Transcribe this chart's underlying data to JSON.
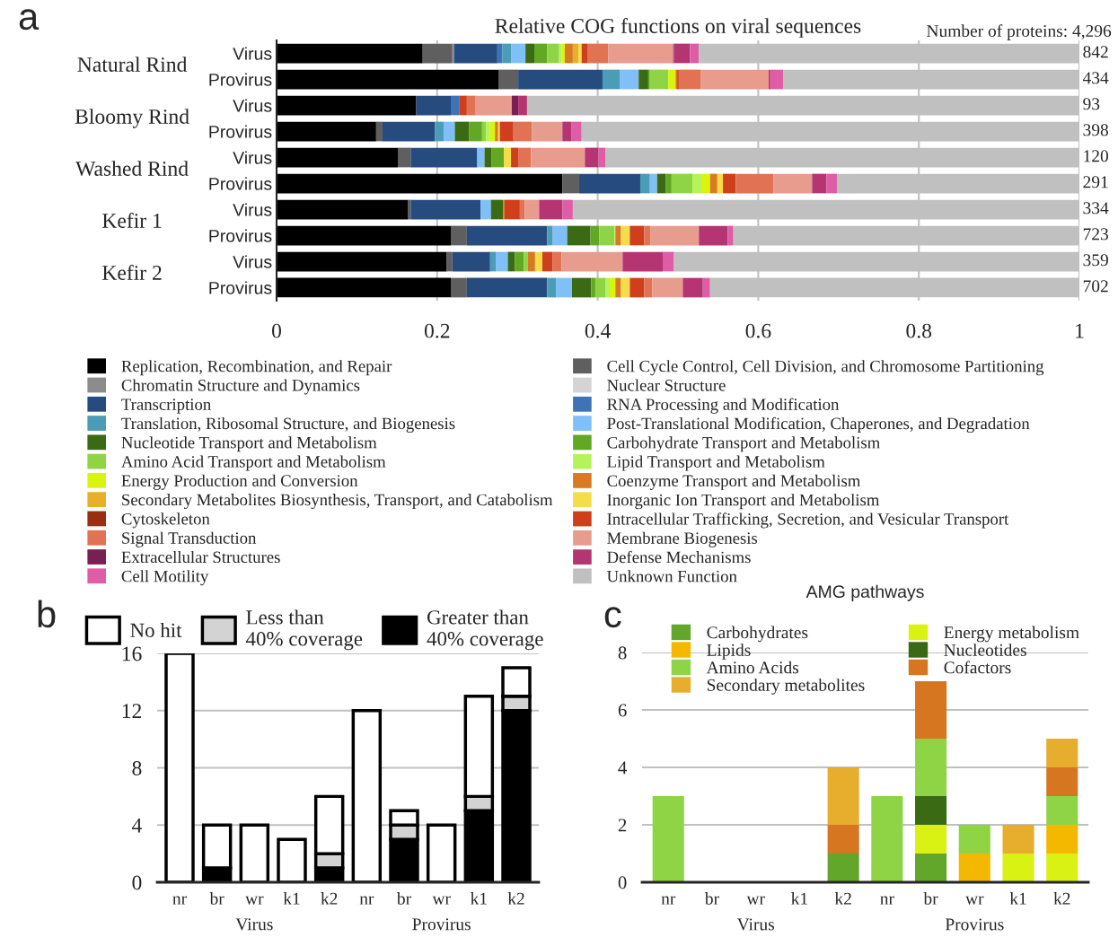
{
  "chart_data": [
    {
      "type": "bar",
      "orientation": "horizontal",
      "stacked": true,
      "title": "Relative COG functions on viral sequences",
      "categories": [
        "Virus",
        "Provirus",
        "Virus",
        "Provirus",
        "Virus",
        "Provirus",
        "Virus",
        "Provirus",
        "Virus",
        "Provirus"
      ],
      "xlim": [
        0,
        1
      ],
      "xticks": [
        0,
        0.2,
        0.4,
        0.6,
        0.8,
        1
      ],
      "grid": "x",
      "legend": "bottom",
      "annotations": [
        "a",
        "Natural Rind",
        "Bloomy Rind",
        "Washed Rind",
        "Kefir 1",
        "Kefir 2",
        "Number of proteins: 4,296",
        "842",
        "434",
        "93",
        "398",
        "120",
        "291",
        "334",
        "723",
        "359",
        "702"
      ],
      "series": [
        {
          "name": "Replication, Recombination, and Repair",
          "color": "#000000",
          "values": [
            0.182,
            0.277,
            0.174,
            0.124,
            0.151,
            0.356,
            0.164,
            0.217,
            0.212,
            0.217
          ]
        },
        {
          "name": "Cell Cycle Control, Cell Division, and Chromosome Partitioning",
          "color": "#5f5f5f",
          "values": [
            0.037,
            0.024,
            0,
            0.008,
            0.016,
            0.021,
            0.003,
            0.02,
            0.007,
            0.02
          ]
        },
        {
          "name": "Chromatin Structure and Dynamics",
          "color": "#8c8c8c",
          "values": [
            0.002,
            0,
            0,
            0,
            0,
            0,
            0,
            0,
            0,
            0
          ]
        },
        {
          "name": "Nuclear Structure",
          "color": "#d4d4d4",
          "values": [
            0,
            0,
            0,
            0,
            0,
            0,
            0,
            0,
            0,
            0
          ]
        },
        {
          "name": "Transcription",
          "color": "#264c7f",
          "values": [
            0.054,
            0.105,
            0.043,
            0.065,
            0.083,
            0.076,
            0.087,
            0.1,
            0.047,
            0.1
          ]
        },
        {
          "name": "RNA Processing and Modification",
          "color": "#3f73b8",
          "values": [
            0.006,
            0,
            0.011,
            0,
            0,
            0,
            0,
            0,
            0,
            0
          ]
        },
        {
          "name": "Translation, Ribosomal Structure, and Biogenesis",
          "color": "#4b9cb6",
          "values": [
            0.011,
            0.022,
            0,
            0.011,
            0,
            0.012,
            0,
            0.007,
            0.007,
            0.011
          ]
        },
        {
          "name": "Post-Translational Modification, Chaperones, and Degradation",
          "color": "#80bff8",
          "values": [
            0.018,
            0.023,
            0,
            0.014,
            0.009,
            0.009,
            0.013,
            0.018,
            0.015,
            0.02
          ]
        },
        {
          "name": "Nucleotide Transport and Metabolism",
          "color": "#3a6b14",
          "values": [
            0.011,
            0.012,
            0,
            0.018,
            0.009,
            0.011,
            0.015,
            0.029,
            0.009,
            0.024
          ]
        },
        {
          "name": "Carbohydrate Transport and Metabolism",
          "color": "#62a823",
          "values": [
            0.016,
            0.002,
            0,
            0.016,
            0.015,
            0.007,
            0,
            0.011,
            0.011,
            0.005
          ]
        },
        {
          "name": "Amino Acid Transport and Metabolism",
          "color": "#8fd444",
          "values": [
            0.015,
            0.023,
            0,
            0.005,
            0,
            0.026,
            0,
            0.019,
            0.005,
            0.013
          ]
        },
        {
          "name": "Lipid Transport and Metabolism",
          "color": "#b4f35c",
          "values": [
            0.003,
            0,
            0,
            0.005,
            0,
            0.011,
            0,
            0.001,
            0,
            0.005
          ]
        },
        {
          "name": "Energy Production and Conversion",
          "color": "#d9f50d",
          "values": [
            0.004,
            0.009,
            0,
            0.006,
            0,
            0.011,
            0,
            0,
            0,
            0.007
          ]
        },
        {
          "name": "Coenzyme Transport and Metabolism",
          "color": "#d87a20",
          "values": [
            0.01,
            0.002,
            0,
            0.004,
            0,
            0.009,
            0.002,
            0.007,
            0.009,
            0.007
          ]
        },
        {
          "name": "Secondary Metabolites Biosynthesis, Transport, and Catabolism",
          "color": "#e8b02a",
          "values": [
            0.007,
            0,
            0,
            0,
            0,
            0,
            0,
            0,
            0,
            0
          ]
        },
        {
          "name": "Inorganic Ion Transport and Metabolism",
          "color": "#f5dc4a",
          "values": [
            0.004,
            0,
            0,
            0.002,
            0.009,
            0.007,
            0,
            0.011,
            0.009,
            0.011
          ]
        },
        {
          "name": "Cytoskeleton",
          "color": "#9a2f10",
          "values": [
            0,
            0,
            0,
            0,
            0,
            0,
            0,
            0,
            0,
            0
          ]
        },
        {
          "name": "Intracellular Trafficking, Secretion, and Vesicular Transport",
          "color": "#cf3f1c",
          "values": [
            0.007,
            0.002,
            0.009,
            0.017,
            0.009,
            0.016,
            0.019,
            0.018,
            0.013,
            0.018
          ]
        },
        {
          "name": "Signal Transduction",
          "color": "#e27254",
          "values": [
            0.026,
            0.027,
            0.011,
            0.023,
            0.016,
            0.047,
            0.006,
            0.008,
            0.011,
            0.01
          ]
        },
        {
          "name": "Membrane Biogenesis",
          "color": "#e89c8d",
          "values": [
            0.081,
            0.085,
            0.045,
            0.038,
            0.067,
            0.048,
            0.018,
            0.06,
            0.076,
            0.038
          ]
        },
        {
          "name": "Extracellular Structures",
          "color": "#7a1f53",
          "values": [
            0.001,
            0,
            0.008,
            0,
            0,
            0,
            0,
            0,
            0,
            0
          ]
        },
        {
          "name": "Defense Mechanisms",
          "color": "#b53573",
          "values": [
            0.02,
            0.002,
            0.011,
            0.011,
            0.017,
            0.018,
            0.029,
            0.036,
            0.05,
            0.025
          ]
        },
        {
          "name": "Cell Motility",
          "color": "#df5ca6",
          "values": [
            0.011,
            0.016,
            0,
            0.013,
            0.009,
            0.013,
            0.013,
            0.007,
            0.014,
            0.009
          ]
        },
        {
          "name": "Unknown Function",
          "color": "#bfc0bf",
          "values": [
            0.474,
            0.369,
            0.688,
            0.62,
            0.59,
            0.302,
            0.631,
            0.431,
            0.505,
            0.46
          ]
        }
      ]
    },
    {
      "type": "bar",
      "stacked": true,
      "categories": [
        "nr",
        "br",
        "wr",
        "k1",
        "k2",
        "nr",
        "br",
        "wr",
        "k1",
        "k2"
      ],
      "ylim": [
        0,
        16
      ],
      "yticks": [
        0,
        4,
        8,
        12,
        16
      ],
      "grid": "y",
      "legend": "top",
      "annotations": [
        "b",
        "Virus",
        "Provirus"
      ],
      "series": [
        {
          "name": "Greater than\n40% coverage",
          "color": "#000000",
          "values": [
            0,
            1,
            0,
            0,
            1,
            0,
            3,
            0,
            5,
            12
          ]
        },
        {
          "name": "Less than\n40% coverage",
          "color": "#d3d3d3",
          "values": [
            0,
            0,
            0,
            0,
            1,
            0,
            1,
            0,
            1,
            1
          ]
        },
        {
          "name": "No hit",
          "color": "#ffffff",
          "values": [
            16,
            3,
            4,
            3,
            4,
            12,
            1,
            4,
            7,
            2
          ]
        }
      ]
    },
    {
      "type": "bar",
      "stacked": true,
      "title": "AMG pathways",
      "categories": [
        "nr",
        "br",
        "wr",
        "k1",
        "k2",
        "nr",
        "br",
        "wr",
        "k1",
        "k2"
      ],
      "ylim": [
        0,
        8
      ],
      "yticks": [
        0,
        2,
        4,
        6,
        8
      ],
      "grid": "y",
      "legend": "top",
      "annotations": [
        "c",
        "Virus",
        "Provirus"
      ],
      "series": [
        {
          "name": "Carbohydrates",
          "color": "#62a72a",
          "values": [
            0,
            0,
            0,
            0,
            1,
            0,
            1,
            0,
            0,
            0
          ]
        },
        {
          "name": "Energy metabolism",
          "color": "#d9f213",
          "values": [
            0,
            0,
            0,
            0,
            0,
            0,
            1,
            0,
            1,
            1
          ]
        },
        {
          "name": "Lipids",
          "color": "#f5b800",
          "values": [
            0,
            0,
            0,
            0,
            0,
            0,
            0,
            1,
            0,
            1
          ]
        },
        {
          "name": "Nucleotides",
          "color": "#3a6b14",
          "values": [
            0,
            0,
            0,
            0,
            0,
            0,
            1,
            0,
            0,
            0
          ]
        },
        {
          "name": "Amino Acids",
          "color": "#8fd444",
          "values": [
            3,
            0,
            0,
            0,
            0,
            3,
            2,
            1,
            0,
            1
          ]
        },
        {
          "name": "Cofactors",
          "color": "#d67620",
          "values": [
            0,
            0,
            0,
            0,
            1,
            0,
            2,
            0,
            0,
            1
          ]
        },
        {
          "name": "Secondary metabolites",
          "color": "#e6ae2c",
          "values": [
            0,
            0,
            0,
            0,
            2,
            0,
            0,
            0,
            1,
            1
          ]
        }
      ]
    }
  ]
}
